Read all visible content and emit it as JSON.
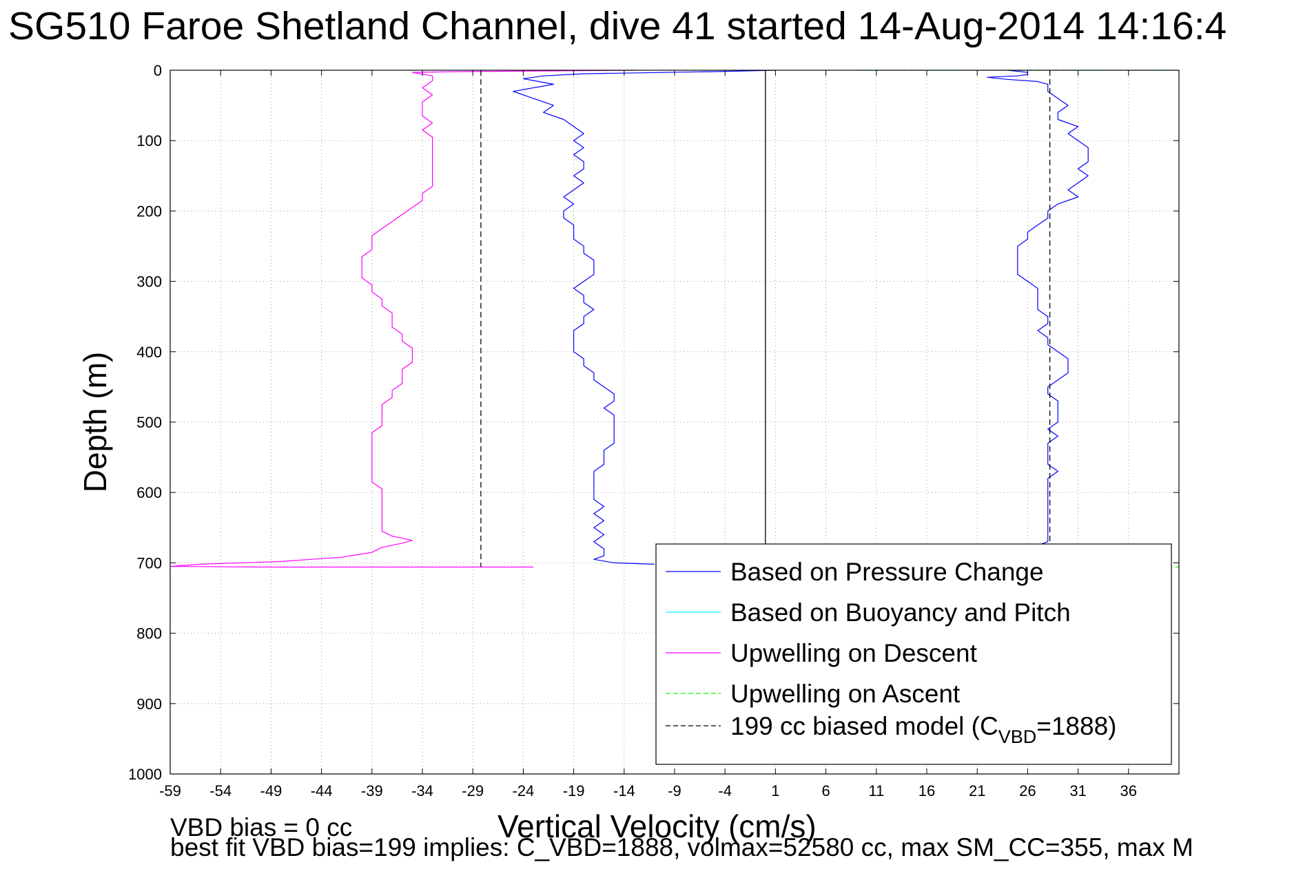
{
  "chart_data": {
    "type": "line",
    "title": "SG510 Faroe Shetland Channel, dive 41 started 14-Aug-2014 14:16:4",
    "xlabel": "Vertical Velocity (cm/s)",
    "ylabel": "Depth (m)",
    "xlim": [
      -59,
      41
    ],
    "ylim": [
      1000,
      0
    ],
    "y_reversed": true,
    "grid": true,
    "xticks": [
      "-59",
      "-54",
      "-49",
      "-44",
      "-39",
      "-34",
      "-29",
      "-24",
      "-19",
      "-14",
      "-9",
      "-4",
      "1",
      "6",
      "11",
      "16",
      "21",
      "26",
      "31",
      "36"
    ],
    "yticks": [
      "0",
      "100",
      "200",
      "300",
      "400",
      "500",
      "600",
      "700",
      "800",
      "900",
      "1000"
    ],
    "legend_position": "lower-right",
    "legend": [
      {
        "prefix": "Based on Pressure Change",
        "sub": "",
        "suffix": "",
        "color": "#0000ff",
        "dash": "solid"
      },
      {
        "prefix": "Based on Buoyancy and Pitch",
        "sub": "",
        "suffix": "",
        "color": "#00ffff",
        "dash": "solid"
      },
      {
        "prefix": "Upwelling on Descent",
        "sub": "",
        "suffix": "",
        "color": "#ff00ff",
        "dash": "solid"
      },
      {
        "prefix": "Upwelling on Ascent",
        "sub": "",
        "suffix": "",
        "color": "#00ff00",
        "dash": "dashed"
      },
      {
        "prefix": "199 cc biased model (C",
        "sub": "VBD",
        "suffix": "=1888)",
        "color": "#000000",
        "dash": "dashed"
      }
    ],
    "series": [
      {
        "color": "#0000ff",
        "style": "solid",
        "points": [
          [
            1,
            0
          ],
          [
            -5,
            2
          ],
          [
            -18,
            5
          ],
          [
            -22,
            8
          ],
          [
            -24,
            12
          ],
          [
            -21,
            20
          ],
          [
            -25,
            30
          ],
          [
            -23,
            40
          ],
          [
            -21,
            50
          ],
          [
            -22,
            60
          ],
          [
            -20,
            70
          ],
          [
            -19,
            80
          ],
          [
            -18,
            90
          ],
          [
            -19,
            100
          ],
          [
            -18,
            110
          ],
          [
            -19,
            120
          ],
          [
            -18,
            130
          ],
          [
            -18,
            140
          ],
          [
            -19,
            150
          ],
          [
            -18,
            160
          ],
          [
            -19,
            170
          ],
          [
            -20,
            180
          ],
          [
            -19,
            190
          ],
          [
            -20,
            200
          ],
          [
            -20,
            210
          ],
          [
            -19,
            220
          ],
          [
            -19,
            230
          ],
          [
            -19,
            240
          ],
          [
            -18,
            250
          ],
          [
            -18,
            260
          ],
          [
            -17,
            270
          ],
          [
            -17,
            280
          ],
          [
            -17,
            290
          ],
          [
            -18,
            300
          ],
          [
            -19,
            310
          ],
          [
            -18,
            320
          ],
          [
            -18,
            330
          ],
          [
            -17,
            340
          ],
          [
            -18,
            350
          ],
          [
            -18,
            360
          ],
          [
            -19,
            370
          ],
          [
            -19,
            380
          ],
          [
            -19,
            390
          ],
          [
            -19,
            400
          ],
          [
            -18,
            410
          ],
          [
            -18,
            420
          ],
          [
            -17,
            430
          ],
          [
            -17,
            440
          ],
          [
            -16,
            450
          ],
          [
            -15,
            460
          ],
          [
            -15,
            470
          ],
          [
            -16,
            480
          ],
          [
            -15,
            490
          ],
          [
            -15,
            500
          ],
          [
            -15,
            510
          ],
          [
            -15,
            520
          ],
          [
            -15,
            530
          ],
          [
            -16,
            540
          ],
          [
            -16,
            550
          ],
          [
            -16,
            560
          ],
          [
            -17,
            570
          ],
          [
            -17,
            580
          ],
          [
            -17,
            590
          ],
          [
            -17,
            600
          ],
          [
            -17,
            610
          ],
          [
            -16,
            620
          ],
          [
            -17,
            630
          ],
          [
            -16,
            640
          ],
          [
            -17,
            650
          ],
          [
            -16,
            660
          ],
          [
            -17,
            670
          ],
          [
            -16,
            680
          ],
          [
            -16,
            690
          ],
          [
            -17,
            695
          ],
          [
            -15,
            700
          ],
          [
            -11,
            702
          ]
        ]
      },
      {
        "color": "#0000ff",
        "style": "solid",
        "points": [
          [
            24,
            0
          ],
          [
            26,
            3
          ],
          [
            26,
            6
          ],
          [
            25,
            8
          ],
          [
            22,
            10
          ],
          [
            24,
            13
          ],
          [
            27,
            16
          ],
          [
            28,
            20
          ],
          [
            28,
            30
          ],
          [
            29,
            40
          ],
          [
            30,
            50
          ],
          [
            29,
            60
          ],
          [
            29,
            70
          ],
          [
            31,
            80
          ],
          [
            30,
            90
          ],
          [
            31,
            100
          ],
          [
            32,
            110
          ],
          [
            32,
            120
          ],
          [
            32,
            130
          ],
          [
            31,
            140
          ],
          [
            32,
            150
          ],
          [
            31,
            160
          ],
          [
            30,
            170
          ],
          [
            31,
            180
          ],
          [
            29,
            190
          ],
          [
            28,
            200
          ],
          [
            28,
            210
          ],
          [
            27,
            220
          ],
          [
            26,
            230
          ],
          [
            26,
            240
          ],
          [
            25,
            250
          ],
          [
            25,
            260
          ],
          [
            25,
            270
          ],
          [
            25,
            280
          ],
          [
            25,
            290
          ],
          [
            26,
            300
          ],
          [
            27,
            310
          ],
          [
            27,
            320
          ],
          [
            27,
            330
          ],
          [
            27,
            340
          ],
          [
            28,
            350
          ],
          [
            28,
            360
          ],
          [
            27,
            370
          ],
          [
            28,
            380
          ],
          [
            28,
            390
          ],
          [
            29,
            400
          ],
          [
            30,
            410
          ],
          [
            30,
            420
          ],
          [
            30,
            430
          ],
          [
            29,
            440
          ],
          [
            28,
            450
          ],
          [
            28,
            460
          ],
          [
            29,
            470
          ],
          [
            29,
            480
          ],
          [
            29,
            490
          ],
          [
            29,
            500
          ],
          [
            28,
            510
          ],
          [
            29,
            520
          ],
          [
            28,
            530
          ],
          [
            28,
            540
          ],
          [
            28,
            550
          ],
          [
            28,
            560
          ],
          [
            29,
            570
          ],
          [
            28,
            580
          ],
          [
            28,
            590
          ],
          [
            28,
            600
          ],
          [
            28,
            610
          ],
          [
            28,
            620
          ],
          [
            28,
            630
          ],
          [
            28,
            640
          ],
          [
            28,
            650
          ],
          [
            28,
            660
          ],
          [
            28,
            670
          ],
          [
            27,
            675
          ]
        ]
      },
      {
        "color": "#ff00ff",
        "style": "solid",
        "points": [
          [
            -13,
            0
          ],
          [
            -30,
            2
          ],
          [
            -35,
            3
          ],
          [
            -33,
            8
          ],
          [
            -33,
            15
          ],
          [
            -34,
            25
          ],
          [
            -33,
            35
          ],
          [
            -34,
            45
          ],
          [
            -34,
            55
          ],
          [
            -34,
            65
          ],
          [
            -33,
            75
          ],
          [
            -34,
            85
          ],
          [
            -33,
            95
          ],
          [
            -33,
            105
          ],
          [
            -33,
            115
          ],
          [
            -33,
            125
          ],
          [
            -33,
            135
          ],
          [
            -33,
            145
          ],
          [
            -33,
            155
          ],
          [
            -33,
            165
          ],
          [
            -34,
            175
          ],
          [
            -34,
            185
          ],
          [
            -35,
            195
          ],
          [
            -36,
            205
          ],
          [
            -37,
            215
          ],
          [
            -38,
            225
          ],
          [
            -39,
            235
          ],
          [
            -39,
            245
          ],
          [
            -39,
            255
          ],
          [
            -40,
            265
          ],
          [
            -40,
            275
          ],
          [
            -40,
            285
          ],
          [
            -40,
            295
          ],
          [
            -39,
            305
          ],
          [
            -39,
            315
          ],
          [
            -38,
            325
          ],
          [
            -38,
            335
          ],
          [
            -37,
            345
          ],
          [
            -37,
            355
          ],
          [
            -37,
            365
          ],
          [
            -36,
            375
          ],
          [
            -36,
            385
          ],
          [
            -35,
            395
          ],
          [
            -35,
            405
          ],
          [
            -35,
            415
          ],
          [
            -36,
            425
          ],
          [
            -36,
            435
          ],
          [
            -36,
            445
          ],
          [
            -37,
            455
          ],
          [
            -37,
            465
          ],
          [
            -38,
            475
          ],
          [
            -38,
            485
          ],
          [
            -38,
            495
          ],
          [
            -38,
            505
          ],
          [
            -39,
            515
          ],
          [
            -39,
            525
          ],
          [
            -39,
            535
          ],
          [
            -39,
            545
          ],
          [
            -39,
            555
          ],
          [
            -39,
            565
          ],
          [
            -39,
            575
          ],
          [
            -39,
            585
          ],
          [
            -38,
            595
          ],
          [
            -38,
            605
          ],
          [
            -38,
            615
          ],
          [
            -38,
            625
          ],
          [
            -38,
            635
          ],
          [
            -38,
            645
          ],
          [
            -38,
            655
          ],
          [
            -37,
            662
          ],
          [
            -35,
            668
          ],
          [
            -36,
            672
          ],
          [
            -38,
            678
          ],
          [
            -39,
            685
          ],
          [
            -42,
            692
          ],
          [
            -48,
            698
          ],
          [
            -56,
            702
          ],
          [
            -59,
            705
          ],
          [
            -50,
            706
          ],
          [
            -23,
            706
          ]
        ]
      },
      {
        "color": "#00ff00",
        "style": "dashed",
        "points": [
          [
            9,
            0
          ],
          [
            41,
            0
          ]
        ]
      },
      {
        "color": "#00ff00",
        "style": "dashed",
        "points": [
          [
            38,
            706
          ],
          [
            41,
            706
          ]
        ]
      },
      {
        "color": "#000000",
        "style": "dashed",
        "points": [
          [
            -28.2,
            0
          ],
          [
            -28.2,
            706
          ]
        ]
      },
      {
        "color": "#000000",
        "style": "dashed",
        "points": [
          [
            28.2,
            0
          ],
          [
            28.2,
            706
          ]
        ]
      },
      {
        "color": "#000000",
        "style": "solid",
        "points": [
          [
            0,
            0
          ],
          [
            0,
            706
          ]
        ]
      }
    ]
  },
  "footer": {
    "line1": "VBD bias = 0 cc",
    "line2": "best fit VBD bias=199 implies: C_VBD=1888, volmax=52580 cc, max SM_CC=355, max M"
  }
}
